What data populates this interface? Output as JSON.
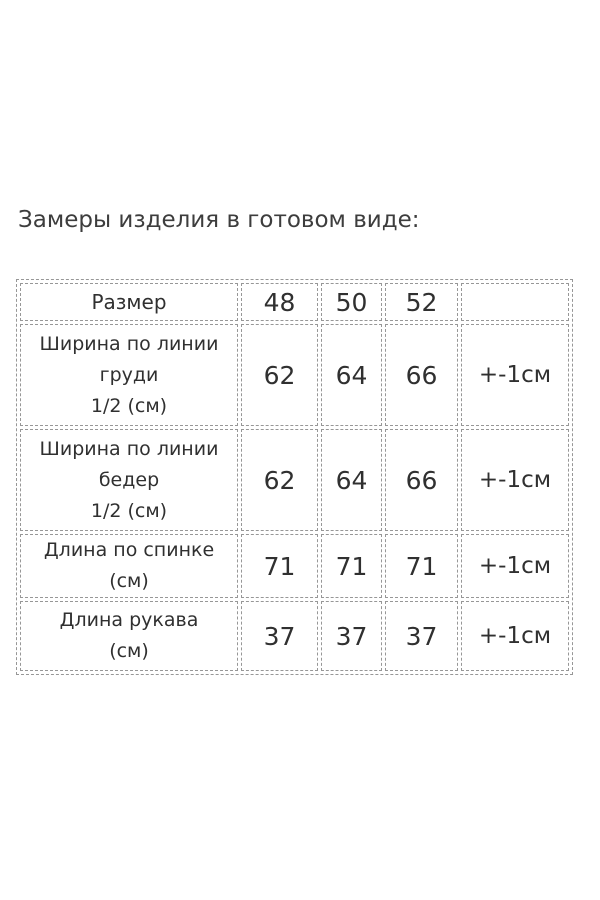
{
  "title": "Замеры изделия в готовом виде:",
  "colors": {
    "background": "#ffffff",
    "title_text": "#3d3d3d",
    "table_text": "#303030",
    "dashed_border": "#979797"
  },
  "table": {
    "header": {
      "label": "Размер",
      "sizes": [
        "48",
        "50",
        "52"
      ],
      "tolerance": ""
    },
    "rows": [
      {
        "label": "Ширина по линии\nгруди\n1/2 (см)",
        "values": [
          "62",
          "64",
          "66"
        ],
        "tolerance": "+-1см"
      },
      {
        "label": "Ширина по линии\nбедер\n1/2 (см)",
        "values": [
          "62",
          "64",
          "66"
        ],
        "tolerance": "+-1см"
      },
      {
        "label": "Длина по спинке\n(см)",
        "values": [
          "71",
          "71",
          "71"
        ],
        "tolerance": "+-1см"
      },
      {
        "label": "Длина рукава\n(см)",
        "values": [
          "37",
          "37",
          "37"
        ],
        "tolerance": "+-1см"
      }
    ]
  }
}
